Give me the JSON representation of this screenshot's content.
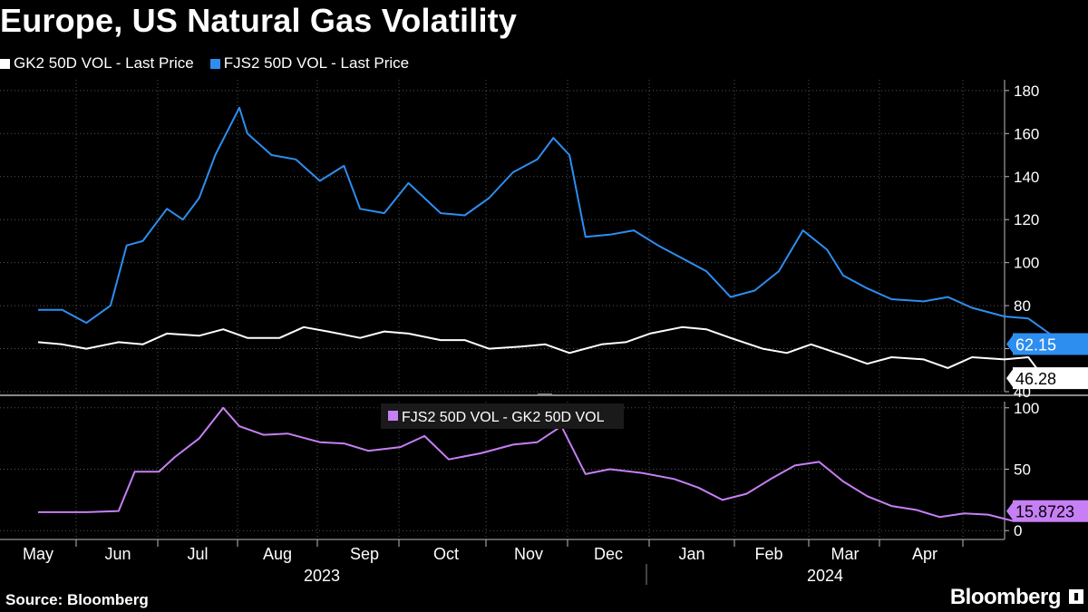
{
  "title": "Europe, US Natural Gas Volatility",
  "source": "Source: Bloomberg",
  "brand": "Bloomberg",
  "colors": {
    "background": "#000000",
    "gk2": "#ffffff",
    "fjs2": "#2d8ef0",
    "spread": "#c77ff5",
    "grid": "#555555"
  },
  "chart_data": [
    {
      "type": "line",
      "title": "Europe, US Natural Gas Volatility",
      "x_months": [
        "May",
        "Jun",
        "Jul",
        "Aug",
        "Sep",
        "Oct",
        "Nov",
        "Dec",
        "Jan",
        "Feb",
        "Mar",
        "Apr"
      ],
      "x_years": [
        "2023",
        "2024"
      ],
      "x_range": [
        "2023-05-01",
        "2024-05-15"
      ],
      "ylim": [
        40,
        185
      ],
      "yticks": [
        40,
        60,
        80,
        100,
        120,
        140,
        160,
        180
      ],
      "ytick_labels": [
        "40",
        "",
        "80",
        "100",
        "120",
        "140",
        "160",
        "180"
      ],
      "series": [
        {
          "name": "GK2 50D VOL - Last Price",
          "last_value_label": "46.28",
          "points": [
            [
              0,
              63
            ],
            [
              0.3,
              62
            ],
            [
              0.6,
              60
            ],
            [
              1,
              63
            ],
            [
              1.3,
              62
            ],
            [
              1.6,
              67
            ],
            [
              2,
              66
            ],
            [
              2.3,
              69
            ],
            [
              2.6,
              65
            ],
            [
              3,
              65
            ],
            [
              3.3,
              70
            ],
            [
              3.6,
              68
            ],
            [
              4,
              65
            ],
            [
              4.3,
              68
            ],
            [
              4.6,
              67
            ],
            [
              5,
              64
            ],
            [
              5.3,
              64
            ],
            [
              5.6,
              60
            ],
            [
              6,
              61
            ],
            [
              6.3,
              62
            ],
            [
              6.6,
              58
            ],
            [
              7,
              62
            ],
            [
              7.3,
              63
            ],
            [
              7.6,
              67
            ],
            [
              8,
              70
            ],
            [
              8.3,
              69
            ],
            [
              8.6,
              65
            ],
            [
              9,
              60
            ],
            [
              9.3,
              58
            ],
            [
              9.6,
              62
            ],
            [
              10,
              57
            ],
            [
              10.3,
              53
            ],
            [
              10.6,
              56
            ],
            [
              11,
              55
            ],
            [
              11.3,
              51
            ],
            [
              11.6,
              56
            ],
            [
              12,
              55
            ],
            [
              12.3,
              56
            ],
            [
              12.5,
              46
            ],
            [
              12.8,
              47
            ],
            [
              13,
              46.28
            ]
          ]
        },
        {
          "name": "FJS2 50D VOL - Last Price",
          "last_value_label": "62.15",
          "points": [
            [
              0,
              78
            ],
            [
              0.3,
              78
            ],
            [
              0.6,
              72
            ],
            [
              0.9,
              80
            ],
            [
              1.1,
              108
            ],
            [
              1.3,
              110
            ],
            [
              1.6,
              125
            ],
            [
              1.8,
              120
            ],
            [
              2,
              130
            ],
            [
              2.2,
              150
            ],
            [
              2.5,
              172
            ],
            [
              2.6,
              160
            ],
            [
              2.9,
              150
            ],
            [
              3.2,
              148
            ],
            [
              3.5,
              138
            ],
            [
              3.8,
              145
            ],
            [
              4,
              125
            ],
            [
              4.3,
              123
            ],
            [
              4.6,
              137
            ],
            [
              5,
              123
            ],
            [
              5.3,
              122
            ],
            [
              5.6,
              130
            ],
            [
              5.9,
              142
            ],
            [
              6.2,
              148
            ],
            [
              6.4,
              158
            ],
            [
              6.6,
              150
            ],
            [
              6.8,
              112
            ],
            [
              7.1,
              113
            ],
            [
              7.4,
              115
            ],
            [
              7.7,
              108
            ],
            [
              8,
              102
            ],
            [
              8.3,
              96
            ],
            [
              8.6,
              84
            ],
            [
              8.9,
              87
            ],
            [
              9.2,
              96
            ],
            [
              9.5,
              115
            ],
            [
              9.8,
              106
            ],
            [
              10,
              94
            ],
            [
              10.3,
              88
            ],
            [
              10.6,
              83
            ],
            [
              11,
              82
            ],
            [
              11.3,
              84
            ],
            [
              11.6,
              79
            ],
            [
              12,
              75
            ],
            [
              12.3,
              74
            ],
            [
              12.6,
              66
            ],
            [
              13,
              62.15
            ]
          ]
        }
      ]
    },
    {
      "type": "line",
      "x_months": [
        "May",
        "Jun",
        "Jul",
        "Aug",
        "Sep",
        "Oct",
        "Nov",
        "Dec",
        "Jan",
        "Feb",
        "Mar",
        "Apr"
      ],
      "ylim": [
        -5,
        105
      ],
      "yticks": [
        0,
        50,
        100
      ],
      "ytick_labels": [
        "0",
        "50",
        "100"
      ],
      "series": [
        {
          "name": "FJS2 50D VOL - GK2 50D VOL",
          "last_value_label": "15.8723",
          "points": [
            [
              0,
              15
            ],
            [
              0.6,
              15
            ],
            [
              1,
              16
            ],
            [
              1.2,
              48
            ],
            [
              1.5,
              48
            ],
            [
              1.7,
              60
            ],
            [
              2,
              75
            ],
            [
              2.3,
              100
            ],
            [
              2.5,
              85
            ],
            [
              2.8,
              78
            ],
            [
              3.1,
              79
            ],
            [
              3.5,
              72
            ],
            [
              3.8,
              71
            ],
            [
              4.1,
              65
            ],
            [
              4.5,
              68
            ],
            [
              4.8,
              77
            ],
            [
              5.1,
              58
            ],
            [
              5.5,
              63
            ],
            [
              5.9,
              70
            ],
            [
              6.2,
              72
            ],
            [
              6.5,
              85
            ],
            [
              6.8,
              46
            ],
            [
              7.1,
              50
            ],
            [
              7.5,
              47
            ],
            [
              7.9,
              42
            ],
            [
              8.2,
              35
            ],
            [
              8.5,
              25
            ],
            [
              8.8,
              30
            ],
            [
              9.1,
              42
            ],
            [
              9.4,
              53
            ],
            [
              9.7,
              56
            ],
            [
              10,
              40
            ],
            [
              10.3,
              28
            ],
            [
              10.6,
              20
            ],
            [
              10.9,
              17
            ],
            [
              11.2,
              11
            ],
            [
              11.5,
              14
            ],
            [
              11.8,
              13
            ],
            [
              12.1,
              8
            ],
            [
              12.4,
              12
            ],
            [
              12.6,
              15
            ],
            [
              12.8,
              20
            ],
            [
              13,
              15.87
            ]
          ]
        }
      ]
    }
  ]
}
